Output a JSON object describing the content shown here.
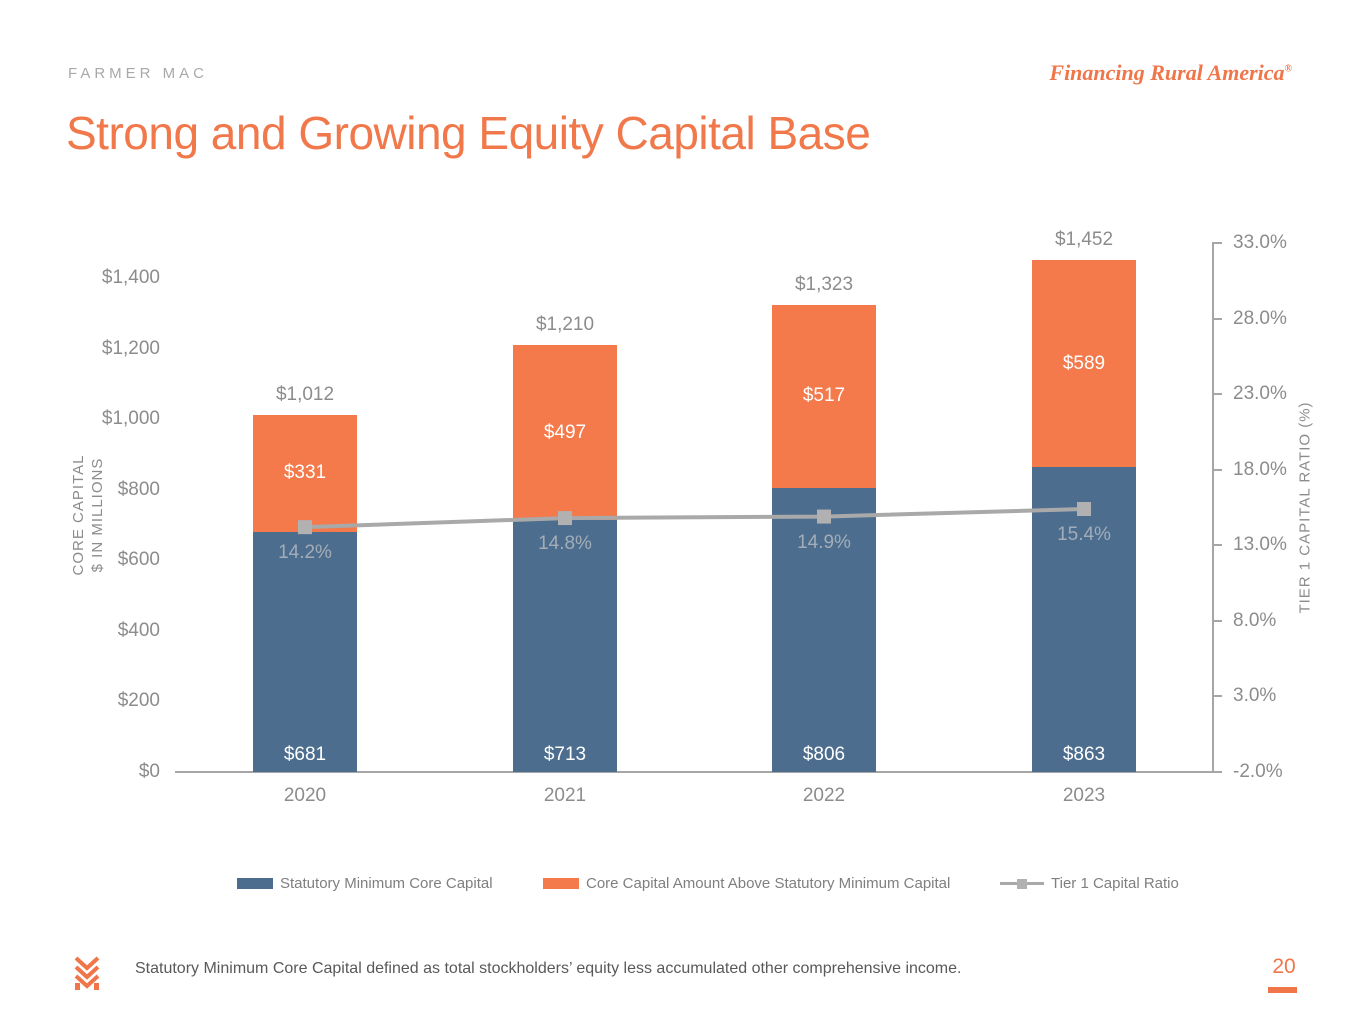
{
  "header": {
    "brand": "FARMER  MAC",
    "tagline": "Financing Rural America",
    "tagline_mark": "®"
  },
  "title": "Strong and Growing Equity Capital Base",
  "colors": {
    "accent_orange": "#f0764a",
    "title_orange": "#f0784a",
    "bar_blue": "#4c6d8e",
    "bar_orange": "#f4794b",
    "line_gray": "#a9a9a9",
    "marker_gray": "#b1b1b1",
    "axis_gray": "#a6a6a6",
    "tick_text_gray": "#8c8c8c",
    "ratio_text_gray": "#a3adb8",
    "legend_text_gray": "#7f7f7f"
  },
  "chart_data": {
    "type": "bar",
    "stacked": true,
    "categories": [
      "2020",
      "2021",
      "2022",
      "2023"
    ],
    "series": [
      {
        "name": "Statutory Minimum Core Capital",
        "type": "bar",
        "color": "#4c6d8e",
        "values": [
          681,
          713,
          806,
          863
        ],
        "labels": [
          "$681",
          "$713",
          "$806",
          "$863"
        ]
      },
      {
        "name": "Core Capital Amount Above Statutory Minimum Capital",
        "type": "bar",
        "color": "#f4794b",
        "values": [
          331,
          497,
          517,
          589
        ],
        "labels": [
          "$331",
          "$497",
          "$517",
          "$589"
        ]
      },
      {
        "name": "Tier 1 Capital Ratio",
        "type": "line",
        "color": "#a9a9a9",
        "values": [
          14.2,
          14.8,
          14.9,
          15.4
        ],
        "labels": [
          "14.2%",
          "14.8%",
          "14.9%",
          "15.4%"
        ]
      }
    ],
    "totals": {
      "values": [
        1012,
        1210,
        1323,
        1452
      ],
      "labels": [
        "$1,012",
        "$1,210",
        "$1,323",
        "$1,452"
      ]
    },
    "left_axis": {
      "title_lines": [
        "CORE CAPITAL",
        "$ IN MILLIONS"
      ],
      "tick_values": [
        0,
        200,
        400,
        600,
        800,
        1000,
        1200,
        1400
      ],
      "tick_labels": [
        "$0",
        "$200",
        "$400",
        "$600",
        "$800",
        "$1,000",
        "$1,200",
        "$1,400"
      ],
      "min": 0,
      "max": 1400
    },
    "right_axis": {
      "title": "TIER 1 CAPITAL RATIO (%)",
      "tick_values": [
        -2,
        3,
        8,
        13,
        18,
        23,
        28,
        33
      ],
      "tick_labels": [
        "-2.0%",
        "3.0%",
        "8.0%",
        "13.0%",
        "18.0%",
        "23.0%",
        "28.0%",
        "33.0%"
      ],
      "min": -2,
      "max": 33
    },
    "legend": [
      {
        "marker": "blue-swatch",
        "label": "Statutory Minimum Core Capital"
      },
      {
        "marker": "orange-swatch",
        "label": "Core Capital Amount Above Statutory Minimum Capital"
      },
      {
        "marker": "gray-line-square",
        "label": "Tier 1 Capital Ratio"
      }
    ],
    "grid": false,
    "legend_position": "bottom"
  },
  "footer": {
    "note": "Statutory Minimum Core Capital defined as total stockholders’ equity less accumulated other comprehensive income.",
    "page": "20"
  }
}
